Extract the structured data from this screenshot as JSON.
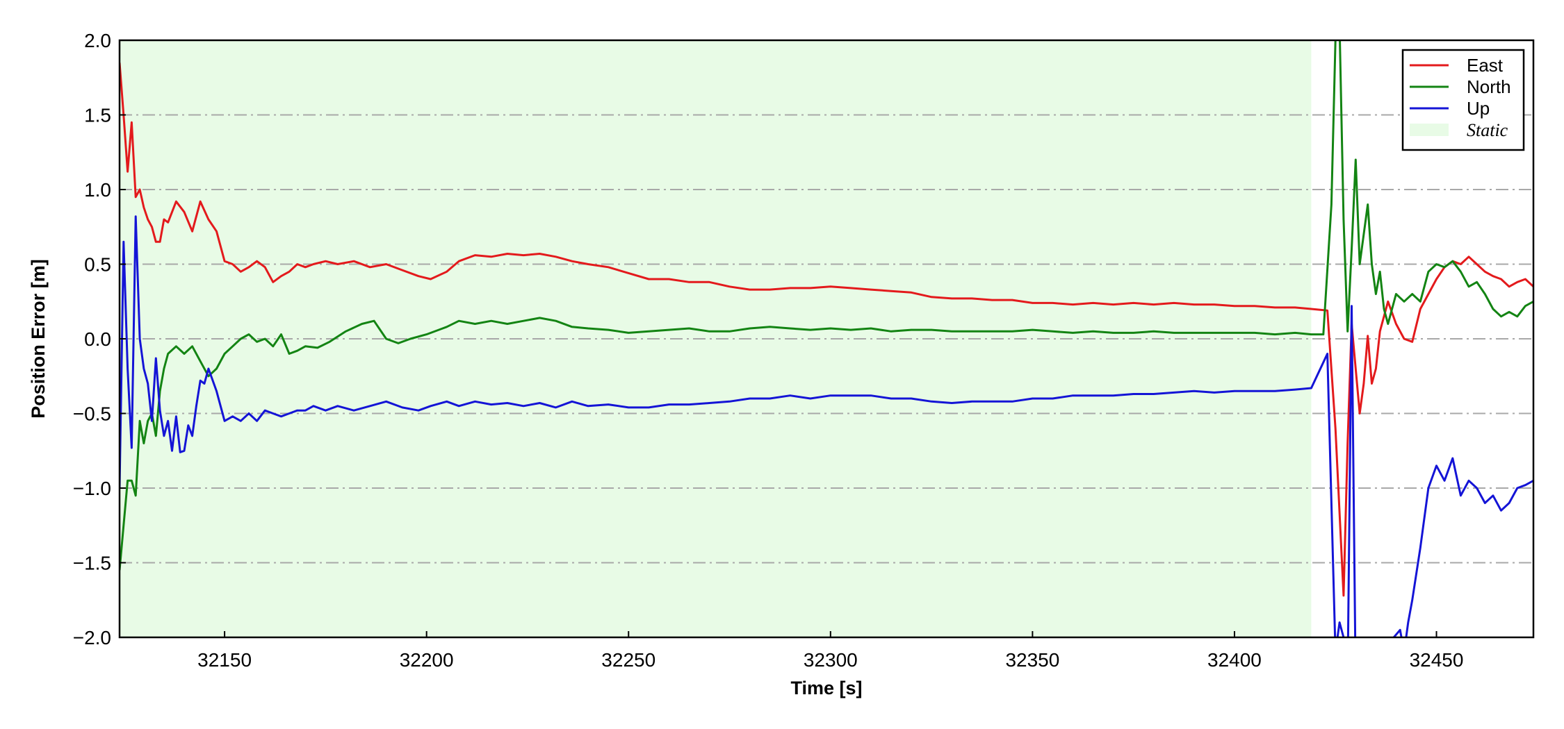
{
  "chart_data": {
    "type": "line",
    "title": "",
    "xlabel": "Time [s]",
    "ylabel": "Position Error [m]",
    "xlim": [
      32124,
      32474
    ],
    "ylim": [
      -2.0,
      2.0
    ],
    "xticks": [
      32150,
      32200,
      32250,
      32300,
      32350,
      32400,
      32450
    ],
    "xtick_labels": [
      "32150",
      "32200",
      "32250",
      "32300",
      "32350",
      "32400",
      "32450"
    ],
    "yticks": [
      -2.0,
      -1.5,
      -1.0,
      -0.5,
      0.0,
      0.5,
      1.0,
      1.5,
      2.0
    ],
    "ytick_labels": [
      "−2.0",
      "−1.5",
      "−1.0",
      "−0.5",
      "0.0",
      "0.5",
      "1.0",
      "1.5",
      "2.0"
    ],
    "grid": "horizontal dash-dot",
    "legend_position": "top-right",
    "shaded_region": {
      "label": "Static",
      "x_start": 32124,
      "x_end": 32419,
      "color": "#e8fbe6"
    },
    "series": [
      {
        "name": "East",
        "color": "#e31a1c",
        "x": [
          32124,
          32125,
          32126,
          32127,
          32128,
          32129,
          32130,
          32131,
          32132,
          32133,
          32134,
          32135,
          32136,
          32138,
          32140,
          32142,
          32144,
          32146,
          32148,
          32150,
          32152,
          32154,
          32156,
          32158,
          32160,
          32162,
          32164,
          32166,
          32168,
          32170,
          32172,
          32175,
          32178,
          32182,
          32186,
          32190,
          32194,
          32198,
          32201,
          32205,
          32208,
          32212,
          32216,
          32220,
          32224,
          32228,
          32232,
          32236,
          32240,
          32245,
          32250,
          32255,
          32260,
          32265,
          32270,
          32275,
          32280,
          32285,
          32290,
          32295,
          32300,
          32305,
          32310,
          32315,
          32320,
          32325,
          32330,
          32335,
          32340,
          32345,
          32350,
          32355,
          32360,
          32365,
          32370,
          32375,
          32380,
          32385,
          32390,
          32395,
          32400,
          32405,
          32410,
          32415,
          32419,
          32423,
          32425,
          32427,
          32428,
          32429,
          32430,
          32431,
          32432,
          32433,
          32434,
          32435,
          32436,
          32437,
          32438,
          32440,
          32442,
          32444,
          32446,
          32448,
          32450,
          32452,
          32454,
          32456,
          32458,
          32460,
          32462,
          32464,
          32466,
          32468,
          32470,
          32472,
          32474
        ],
        "y": [
          1.85,
          1.5,
          1.12,
          1.45,
          0.95,
          1.0,
          0.88,
          0.8,
          0.75,
          0.65,
          0.65,
          0.8,
          0.78,
          0.92,
          0.85,
          0.72,
          0.92,
          0.8,
          0.72,
          0.52,
          0.5,
          0.45,
          0.48,
          0.52,
          0.48,
          0.38,
          0.42,
          0.45,
          0.5,
          0.48,
          0.5,
          0.52,
          0.5,
          0.52,
          0.48,
          0.5,
          0.46,
          0.42,
          0.4,
          0.45,
          0.52,
          0.56,
          0.55,
          0.57,
          0.56,
          0.57,
          0.55,
          0.52,
          0.5,
          0.48,
          0.44,
          0.4,
          0.4,
          0.38,
          0.38,
          0.35,
          0.33,
          0.33,
          0.34,
          0.34,
          0.35,
          0.34,
          0.33,
          0.32,
          0.31,
          0.28,
          0.27,
          0.27,
          0.26,
          0.26,
          0.24,
          0.24,
          0.23,
          0.24,
          0.23,
          0.24,
          0.23,
          0.24,
          0.23,
          0.23,
          0.22,
          0.22,
          0.21,
          0.21,
          0.2,
          0.19,
          -0.6,
          -1.72,
          -0.7,
          0.1,
          -0.2,
          -0.5,
          -0.3,
          0.02,
          -0.3,
          -0.2,
          0.05,
          0.15,
          0.25,
          0.1,
          0.0,
          -0.02,
          0.2,
          0.3,
          0.4,
          0.48,
          0.52,
          0.5,
          0.55,
          0.5,
          0.45,
          0.42,
          0.4,
          0.35,
          0.38,
          0.4,
          0.35
        ]
      },
      {
        "name": "North",
        "color": "#138413",
        "x": [
          32124,
          32125,
          32126,
          32127,
          32128,
          32129,
          32130,
          32131,
          32132,
          32133,
          32134,
          32135,
          32136,
          32138,
          32140,
          32142,
          32144,
          32146,
          32148,
          32150,
          32152,
          32154,
          32156,
          32158,
          32160,
          32162,
          32164,
          32166,
          32168,
          32170,
          32173,
          32176,
          32180,
          32184,
          32187,
          32190,
          32193,
          32196,
          32200,
          32205,
          32208,
          32212,
          32216,
          32220,
          32224,
          32228,
          32232,
          32236,
          32240,
          32245,
          32250,
          32255,
          32260,
          32265,
          32270,
          32275,
          32280,
          32285,
          32290,
          32295,
          32300,
          32305,
          32310,
          32315,
          32320,
          32325,
          32330,
          32335,
          32340,
          32345,
          32350,
          32355,
          32360,
          32365,
          32370,
          32375,
          32380,
          32385,
          32390,
          32395,
          32400,
          32405,
          32410,
          32415,
          32419,
          32422,
          32424,
          32425,
          32426,
          32427,
          32428,
          32429,
          32430,
          32431,
          32432,
          32433,
          32434,
          32435,
          32436,
          32437,
          32438,
          32440,
          32442,
          32444,
          32446,
          32448,
          32450,
          32452,
          32454,
          32456,
          32458,
          32460,
          32462,
          32464,
          32466,
          32468,
          32470,
          32472,
          32474
        ],
        "y": [
          -1.55,
          -1.25,
          -0.95,
          -0.95,
          -1.05,
          -0.55,
          -0.7,
          -0.55,
          -0.5,
          -0.65,
          -0.35,
          -0.2,
          -0.1,
          -0.05,
          -0.1,
          -0.05,
          -0.15,
          -0.25,
          -0.2,
          -0.1,
          -0.05,
          0.0,
          0.03,
          -0.02,
          0.0,
          -0.05,
          0.03,
          -0.1,
          -0.08,
          -0.05,
          -0.06,
          -0.02,
          0.05,
          0.1,
          0.12,
          0.0,
          -0.03,
          0.0,
          0.03,
          0.08,
          0.12,
          0.1,
          0.12,
          0.1,
          0.12,
          0.14,
          0.12,
          0.08,
          0.07,
          0.06,
          0.04,
          0.05,
          0.06,
          0.07,
          0.05,
          0.05,
          0.07,
          0.08,
          0.07,
          0.06,
          0.07,
          0.06,
          0.07,
          0.05,
          0.06,
          0.06,
          0.05,
          0.05,
          0.05,
          0.05,
          0.06,
          0.05,
          0.04,
          0.05,
          0.04,
          0.04,
          0.05,
          0.04,
          0.04,
          0.04,
          0.04,
          0.04,
          0.03,
          0.04,
          0.03,
          0.03,
          0.9,
          2.0,
          2.1,
          0.8,
          0.05,
          0.6,
          1.2,
          0.5,
          0.7,
          0.9,
          0.5,
          0.3,
          0.45,
          0.2,
          0.1,
          0.3,
          0.25,
          0.3,
          0.25,
          0.45,
          0.5,
          0.48,
          0.52,
          0.45,
          0.35,
          0.38,
          0.3,
          0.2,
          0.15,
          0.18,
          0.15,
          0.22,
          0.25
        ]
      },
      {
        "name": "Up",
        "color": "#1414d6",
        "x": [
          32124,
          32125,
          32126,
          32127,
          32128,
          32129,
          32130,
          32131,
          32132,
          32133,
          32134,
          32135,
          32136,
          32137,
          32138,
          32139,
          32140,
          32141,
          32142,
          32143,
          32144,
          32145,
          32146,
          32148,
          32150,
          32152,
          32154,
          32156,
          32158,
          32160,
          32162,
          32164,
          32166,
          32168,
          32170,
          32172,
          32175,
          32178,
          32182,
          32186,
          32190,
          32194,
          32198,
          32201,
          32205,
          32208,
          32212,
          32216,
          32220,
          32224,
          32228,
          32232,
          32236,
          32240,
          32245,
          32250,
          32255,
          32260,
          32265,
          32270,
          32275,
          32280,
          32285,
          32290,
          32295,
          32300,
          32305,
          32310,
          32315,
          32320,
          32325,
          32330,
          32335,
          32340,
          32345,
          32350,
          32355,
          32360,
          32365,
          32370,
          32375,
          32380,
          32385,
          32390,
          32395,
          32400,
          32405,
          32410,
          32415,
          32419,
          32423,
          32425,
          32426,
          32427,
          32428,
          32429,
          32430,
          32441,
          32442,
          32443,
          32444,
          32446,
          32448,
          32450,
          32452,
          32454,
          32456,
          32458,
          32460,
          32462,
          32464,
          32466,
          32468,
          32470,
          32472,
          32474
        ],
        "y": [
          -1.0,
          0.65,
          -0.2,
          -0.73,
          0.82,
          0.0,
          -0.2,
          -0.3,
          -0.55,
          -0.13,
          -0.48,
          -0.65,
          -0.55,
          -0.75,
          -0.52,
          -0.76,
          -0.75,
          -0.58,
          -0.65,
          -0.45,
          -0.28,
          -0.3,
          -0.2,
          -0.35,
          -0.55,
          -0.52,
          -0.55,
          -0.5,
          -0.55,
          -0.48,
          -0.5,
          -0.52,
          -0.5,
          -0.48,
          -0.48,
          -0.45,
          -0.48,
          -0.45,
          -0.48,
          -0.45,
          -0.42,
          -0.46,
          -0.48,
          -0.45,
          -0.42,
          -0.45,
          -0.42,
          -0.44,
          -0.43,
          -0.45,
          -0.43,
          -0.46,
          -0.42,
          -0.45,
          -0.44,
          -0.46,
          -0.46,
          -0.44,
          -0.44,
          -0.43,
          -0.42,
          -0.4,
          -0.4,
          -0.38,
          -0.4,
          -0.38,
          -0.38,
          -0.38,
          -0.4,
          -0.4,
          -0.42,
          -0.43,
          -0.42,
          -0.42,
          -0.42,
          -0.4,
          -0.4,
          -0.38,
          -0.38,
          -0.38,
          -0.37,
          -0.37,
          -0.36,
          -0.35,
          -0.36,
          -0.35,
          -0.35,
          -0.35,
          -0.34,
          -0.33,
          -0.1,
          -2.1,
          -1.9,
          -2.0,
          -2.3,
          0.22,
          -2.3,
          -1.95,
          -2.1,
          -1.9,
          -1.75,
          -1.4,
          -1.0,
          -0.85,
          -0.95,
          -0.8,
          -1.05,
          -0.95,
          -1.0,
          -1.1,
          -1.05,
          -1.15,
          -1.1,
          -1.0,
          -0.98,
          -0.95
        ]
      }
    ]
  },
  "legend": {
    "items": [
      {
        "label": "East",
        "color": "#e31a1c",
        "kind": "line"
      },
      {
        "label": "North",
        "color": "#138413",
        "kind": "line"
      },
      {
        "label": "Up",
        "color": "#1414d6",
        "kind": "line"
      },
      {
        "label": "Static",
        "color": "#e8fbe6",
        "kind": "patch"
      }
    ]
  }
}
